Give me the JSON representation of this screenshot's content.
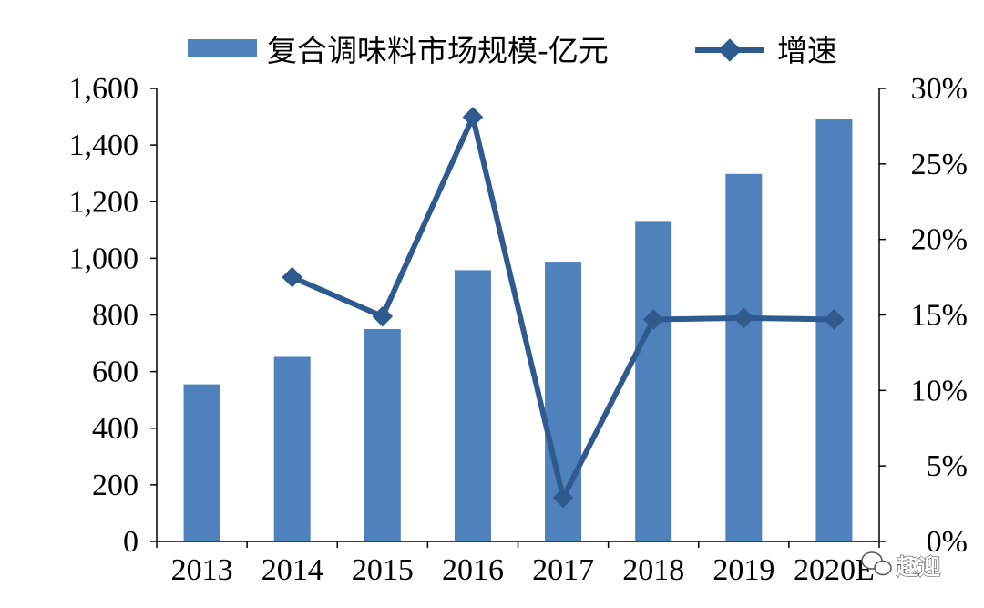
{
  "chart_data": {
    "type": "bar",
    "categories": [
      "2013",
      "2014",
      "2015",
      "2016",
      "2017",
      "2018",
      "2019",
      "2020E"
    ],
    "series": [
      {
        "name": "复合调味料市场规模-亿元",
        "type": "bar",
        "axis": "left",
        "values": [
          555,
          652,
          750,
          958,
          988,
          1132,
          1298,
          1492
        ]
      },
      {
        "name": "增速",
        "type": "line",
        "axis": "right",
        "values": [
          null,
          0.175,
          0.149,
          0.281,
          0.029,
          0.147,
          0.148,
          0.147
        ]
      }
    ],
    "y_left": {
      "ylim": [
        0,
        1600
      ],
      "ticks": [
        0,
        200,
        400,
        600,
        800,
        1000,
        1200,
        1400,
        1600
      ],
      "tick_labels": [
        "0",
        "200",
        "400",
        "600",
        "800",
        "1,000",
        "1,200",
        "1,400",
        "1,600"
      ]
    },
    "y_right": {
      "ylim": [
        0,
        0.3
      ],
      "ticks": [
        0,
        0.05,
        0.1,
        0.15,
        0.2,
        0.25,
        0.3
      ],
      "tick_labels": [
        "0%",
        "5%",
        "10%",
        "15%",
        "20%",
        "25%",
        "30%"
      ]
    },
    "title": "",
    "xlabel": "",
    "ylabel": "",
    "grid": false,
    "legend_position": "top",
    "colors": {
      "bar": "#4F81BD",
      "line": "#2E5A8E"
    }
  },
  "watermark": {
    "text": "趣迎",
    "icon": "wechat-icon"
  }
}
